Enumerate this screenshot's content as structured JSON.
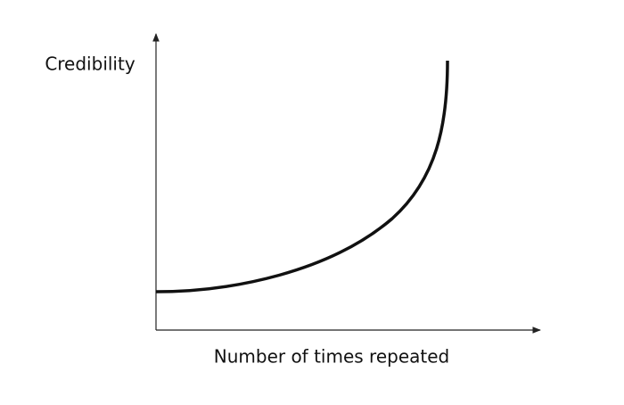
{
  "diagram": {
    "y_axis_label": "Credibility",
    "x_axis_label": "Number of times repeated"
  }
}
